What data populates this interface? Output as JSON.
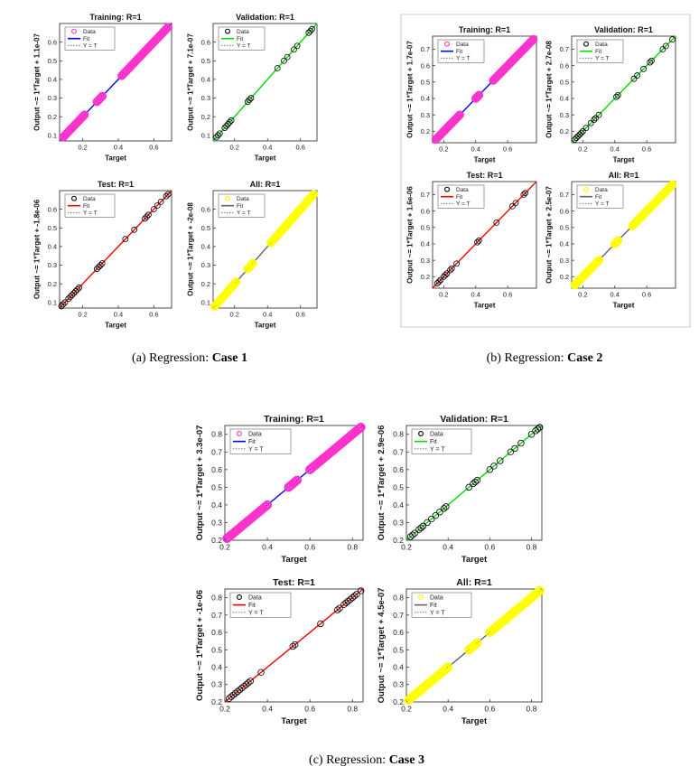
{
  "labels": {
    "xlabel": "Target",
    "legend_data": "Data",
    "legend_fit": "Fit",
    "legend_yt": "Y = T"
  },
  "colors": {
    "training": "#ff33cc",
    "validation": "#00dd00",
    "test_fit": "#ff0000",
    "all_data": "#ffff00",
    "all_fit": "#666666",
    "training_fit": "#0000ff",
    "marker_black": "#000000"
  },
  "captions": [
    {
      "prefix": "(a) Regression: ",
      "bold": "Case 1"
    },
    {
      "prefix": "(b) Regression: ",
      "bold": "Case 2"
    },
    {
      "prefix": "(c) Regression: ",
      "bold": "Case 3"
    }
  ],
  "chart_data": [
    {
      "case": "Case 1",
      "panel": "Training",
      "type": "scatter",
      "title": "Training: R=1",
      "xlabel": "Target",
      "ylabel": "Output ~= 1*Target + 1.1e-07",
      "xlim": [
        0.07,
        0.7
      ],
      "ylim": [
        0.07,
        0.7
      ],
      "xticks": [
        0.2,
        0.4,
        0.6
      ],
      "yticks": [
        0.1,
        0.2,
        0.3,
        0.4,
        0.5,
        0.6
      ],
      "marker": "#ff33cc",
      "fit": "#0000ff",
      "marker_style": "bold-ring",
      "x": [
        0.09,
        0.1,
        0.11,
        0.12,
        0.13,
        0.14,
        0.15,
        0.16,
        0.17,
        0.18,
        0.19,
        0.2,
        0.21,
        0.28,
        0.29,
        0.3,
        0.31,
        0.42,
        0.43,
        0.44,
        0.45,
        0.46,
        0.47,
        0.48,
        0.49,
        0.5,
        0.51,
        0.52,
        0.53,
        0.54,
        0.55,
        0.56,
        0.57,
        0.58,
        0.59,
        0.6,
        0.61,
        0.62,
        0.63,
        0.64,
        0.65,
        0.66,
        0.67,
        0.68
      ]
    },
    {
      "case": "Case 1",
      "panel": "Validation",
      "type": "scatter",
      "title": "Validation: R=1",
      "xlabel": "Target",
      "ylabel": "Output ~= 1*Target + 7.1e-07",
      "xlim": [
        0.07,
        0.7
      ],
      "ylim": [
        0.07,
        0.7
      ],
      "xticks": [
        0.2,
        0.4,
        0.6
      ],
      "yticks": [
        0.1,
        0.2,
        0.3,
        0.4,
        0.5,
        0.6
      ],
      "marker": "#000000",
      "fit": "#00dd00",
      "marker_style": "ring",
      "x": [
        0.09,
        0.1,
        0.11,
        0.14,
        0.15,
        0.16,
        0.17,
        0.18,
        0.28,
        0.29,
        0.3,
        0.46,
        0.5,
        0.52,
        0.56,
        0.58,
        0.65,
        0.66,
        0.67
      ]
    },
    {
      "case": "Case 1",
      "panel": "Test",
      "type": "scatter",
      "title": "Test: R=1",
      "xlabel": "Target",
      "ylabel": "Output ~= 1*Target + -1.8e-06",
      "xlim": [
        0.07,
        0.7
      ],
      "ylim": [
        0.07,
        0.7
      ],
      "xticks": [
        0.2,
        0.4,
        0.6
      ],
      "yticks": [
        0.1,
        0.2,
        0.3,
        0.4,
        0.5,
        0.6
      ],
      "marker": "#000000",
      "fit": "#ff0000",
      "marker_style": "ring",
      "x": [
        0.08,
        0.09,
        0.1,
        0.12,
        0.13,
        0.14,
        0.15,
        0.16,
        0.17,
        0.18,
        0.28,
        0.29,
        0.3,
        0.31,
        0.44,
        0.49,
        0.55,
        0.56,
        0.57,
        0.6,
        0.62,
        0.64,
        0.67,
        0.68
      ]
    },
    {
      "case": "Case 1",
      "panel": "All",
      "type": "scatter",
      "title": "All: R=1",
      "xlabel": "Target",
      "ylabel": "Output ~= 1*Target + -2e-08",
      "xlim": [
        0.07,
        0.7
      ],
      "ylim": [
        0.07,
        0.7
      ],
      "xticks": [
        0.2,
        0.4,
        0.6
      ],
      "yticks": [
        0.1,
        0.2,
        0.3,
        0.4,
        0.5,
        0.6
      ],
      "marker": "#ffff00",
      "fit": "#666666",
      "marker_style": "bold-ring",
      "x": [
        0.08,
        0.09,
        0.1,
        0.11,
        0.12,
        0.13,
        0.14,
        0.15,
        0.16,
        0.17,
        0.18,
        0.19,
        0.2,
        0.21,
        0.28,
        0.29,
        0.3,
        0.31,
        0.42,
        0.43,
        0.44,
        0.45,
        0.46,
        0.47,
        0.48,
        0.49,
        0.5,
        0.51,
        0.52,
        0.53,
        0.54,
        0.55,
        0.56,
        0.57,
        0.58,
        0.59,
        0.6,
        0.61,
        0.62,
        0.63,
        0.64,
        0.65,
        0.66,
        0.67,
        0.68
      ]
    },
    {
      "case": "Case 2",
      "panel": "Training",
      "type": "scatter",
      "title": "Training: R=1",
      "xlabel": "Target",
      "ylabel": "Output ~= 1*Target + 1.7e-07",
      "xlim": [
        0.13,
        0.78
      ],
      "ylim": [
        0.13,
        0.78
      ],
      "xticks": [
        0.2,
        0.4,
        0.6
      ],
      "yticks": [
        0.2,
        0.3,
        0.4,
        0.5,
        0.6,
        0.7
      ],
      "marker": "#ff33cc",
      "fit": "#0000ff",
      "marker_style": "bold-ring",
      "x": [
        0.15,
        0.16,
        0.17,
        0.18,
        0.19,
        0.2,
        0.21,
        0.22,
        0.23,
        0.24,
        0.25,
        0.26,
        0.27,
        0.28,
        0.29,
        0.3,
        0.4,
        0.41,
        0.42,
        0.51,
        0.52,
        0.53,
        0.54,
        0.55,
        0.56,
        0.57,
        0.58,
        0.59,
        0.6,
        0.61,
        0.62,
        0.63,
        0.64,
        0.65,
        0.66,
        0.67,
        0.68,
        0.69,
        0.7,
        0.71,
        0.72,
        0.73,
        0.74,
        0.75,
        0.76
      ]
    },
    {
      "case": "Case 2",
      "panel": "Validation",
      "type": "scatter",
      "title": "Validation: R=1",
      "xlabel": "Target",
      "ylabel": "Output ~= 1*Target + 2.7e-08",
      "xlim": [
        0.13,
        0.78
      ],
      "ylim": [
        0.13,
        0.78
      ],
      "xticks": [
        0.2,
        0.4,
        0.6
      ],
      "yticks": [
        0.2,
        0.3,
        0.4,
        0.5,
        0.6,
        0.7
      ],
      "marker": "#000000",
      "fit": "#00dd00",
      "marker_style": "ring",
      "x": [
        0.15,
        0.16,
        0.17,
        0.18,
        0.19,
        0.2,
        0.22,
        0.25,
        0.27,
        0.28,
        0.3,
        0.41,
        0.42,
        0.52,
        0.54,
        0.58,
        0.62,
        0.63,
        0.7,
        0.72,
        0.76
      ]
    },
    {
      "case": "Case 2",
      "panel": "Test",
      "type": "scatter",
      "title": "Test: R=1",
      "xlabel": "Target",
      "ylabel": "Output ~= 1*Target + 1.6e-06",
      "xlim": [
        0.13,
        0.78
      ],
      "ylim": [
        0.13,
        0.78
      ],
      "xticks": [
        0.2,
        0.4,
        0.6
      ],
      "yticks": [
        0.2,
        0.3,
        0.4,
        0.5,
        0.6,
        0.7
      ],
      "marker": "#000000",
      "fit": "#ff0000",
      "marker_style": "ring",
      "x": [
        0.16,
        0.17,
        0.18,
        0.2,
        0.21,
        0.22,
        0.24,
        0.25,
        0.28,
        0.41,
        0.42,
        0.53,
        0.63,
        0.65,
        0.7,
        0.71
      ]
    },
    {
      "case": "Case 2",
      "panel": "All",
      "type": "scatter",
      "title": "All: R=1",
      "xlabel": "Target",
      "ylabel": "Output ~= 1*Target + 2.5e-07",
      "xlim": [
        0.13,
        0.78
      ],
      "ylim": [
        0.13,
        0.78
      ],
      "xticks": [
        0.2,
        0.4,
        0.6
      ],
      "yticks": [
        0.2,
        0.3,
        0.4,
        0.5,
        0.6,
        0.7
      ],
      "marker": "#ffff00",
      "fit": "#666666",
      "marker_style": "bold-ring",
      "x": [
        0.15,
        0.16,
        0.17,
        0.18,
        0.19,
        0.2,
        0.21,
        0.22,
        0.23,
        0.24,
        0.25,
        0.26,
        0.27,
        0.28,
        0.29,
        0.3,
        0.4,
        0.41,
        0.42,
        0.51,
        0.52,
        0.53,
        0.54,
        0.55,
        0.56,
        0.57,
        0.58,
        0.59,
        0.6,
        0.61,
        0.62,
        0.63,
        0.64,
        0.65,
        0.66,
        0.67,
        0.68,
        0.69,
        0.7,
        0.71,
        0.72,
        0.73,
        0.74,
        0.75,
        0.76
      ]
    },
    {
      "case": "Case 3",
      "panel": "Training",
      "type": "scatter",
      "title": "Training: R=1",
      "xlabel": "Target",
      "ylabel": "Output ~= 1*Target + 3.3e-07",
      "xlim": [
        0.2,
        0.85
      ],
      "ylim": [
        0.2,
        0.85
      ],
      "xticks": [
        0.2,
        0.4,
        0.6,
        0.8
      ],
      "yticks": [
        0.2,
        0.3,
        0.4,
        0.5,
        0.6,
        0.7,
        0.8
      ],
      "marker": "#ff33cc",
      "fit": "#0000ff",
      "marker_style": "bold-ring",
      "x": [
        0.21,
        0.22,
        0.23,
        0.24,
        0.25,
        0.26,
        0.27,
        0.28,
        0.29,
        0.3,
        0.31,
        0.32,
        0.33,
        0.34,
        0.35,
        0.36,
        0.37,
        0.38,
        0.39,
        0.4,
        0.5,
        0.51,
        0.52,
        0.53,
        0.54,
        0.6,
        0.61,
        0.62,
        0.63,
        0.64,
        0.65,
        0.66,
        0.67,
        0.68,
        0.69,
        0.7,
        0.71,
        0.72,
        0.73,
        0.74,
        0.75,
        0.76,
        0.77,
        0.78,
        0.79,
        0.8,
        0.81,
        0.82,
        0.83,
        0.84
      ]
    },
    {
      "case": "Case 3",
      "panel": "Validation",
      "type": "scatter",
      "title": "Validation: R=1",
      "xlabel": "Target",
      "ylabel": "Output ~= 1*Target + 2.9e-06",
      "xlim": [
        0.2,
        0.85
      ],
      "ylim": [
        0.2,
        0.85
      ],
      "xticks": [
        0.2,
        0.4,
        0.6,
        0.8
      ],
      "yticks": [
        0.2,
        0.3,
        0.4,
        0.5,
        0.6,
        0.7,
        0.8
      ],
      "marker": "#000000",
      "fit": "#00dd00",
      "marker_style": "ring",
      "x": [
        0.22,
        0.23,
        0.24,
        0.26,
        0.27,
        0.28,
        0.3,
        0.32,
        0.34,
        0.36,
        0.38,
        0.39,
        0.5,
        0.52,
        0.53,
        0.54,
        0.6,
        0.62,
        0.65,
        0.7,
        0.72,
        0.75,
        0.8,
        0.82,
        0.83,
        0.84
      ]
    },
    {
      "case": "Case 3",
      "panel": "Test",
      "type": "scatter",
      "title": "Test: R=1",
      "xlabel": "Target",
      "ylabel": "Output ~= 1*Target + -1e-06",
      "xlim": [
        0.2,
        0.85
      ],
      "ylim": [
        0.2,
        0.85
      ],
      "xticks": [
        0.2,
        0.4,
        0.6,
        0.8
      ],
      "yticks": [
        0.2,
        0.3,
        0.4,
        0.5,
        0.6,
        0.7,
        0.8
      ],
      "marker": "#000000",
      "fit": "#ff0000",
      "marker_style": "ring",
      "x": [
        0.22,
        0.23,
        0.24,
        0.25,
        0.26,
        0.27,
        0.28,
        0.29,
        0.3,
        0.31,
        0.32,
        0.37,
        0.52,
        0.53,
        0.65,
        0.73,
        0.74,
        0.76,
        0.77,
        0.78,
        0.79,
        0.8,
        0.81,
        0.82,
        0.84
      ]
    },
    {
      "case": "Case 3",
      "panel": "All",
      "type": "scatter",
      "title": "All: R=1",
      "xlabel": "Target",
      "ylabel": "Output ~= 1*Target + 4.5e-07",
      "xlim": [
        0.2,
        0.85
      ],
      "ylim": [
        0.2,
        0.85
      ],
      "xticks": [
        0.2,
        0.4,
        0.6,
        0.8
      ],
      "yticks": [
        0.2,
        0.3,
        0.4,
        0.5,
        0.6,
        0.7,
        0.8
      ],
      "marker": "#ffff00",
      "fit": "#666666",
      "marker_style": "bold-ring",
      "x": [
        0.21,
        0.22,
        0.23,
        0.24,
        0.25,
        0.26,
        0.27,
        0.28,
        0.29,
        0.3,
        0.31,
        0.32,
        0.33,
        0.34,
        0.35,
        0.36,
        0.37,
        0.38,
        0.39,
        0.4,
        0.5,
        0.51,
        0.52,
        0.53,
        0.54,
        0.6,
        0.61,
        0.62,
        0.63,
        0.64,
        0.65,
        0.66,
        0.67,
        0.68,
        0.69,
        0.7,
        0.71,
        0.72,
        0.73,
        0.74,
        0.75,
        0.76,
        0.77,
        0.78,
        0.79,
        0.8,
        0.81,
        0.82,
        0.83,
        0.84
      ]
    }
  ]
}
